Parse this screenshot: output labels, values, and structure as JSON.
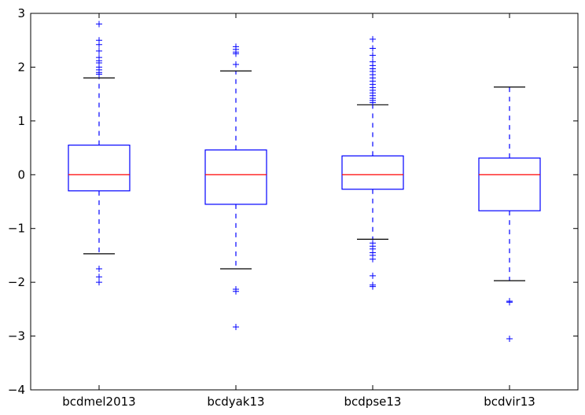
{
  "chart_data": {
    "type": "box",
    "title": "",
    "xlabel": "",
    "ylabel": "",
    "ylim": [
      -4,
      3
    ],
    "yticks": [
      -4,
      -3,
      -2,
      -1,
      0,
      1,
      2,
      3
    ],
    "ytick_labels": [
      "−4",
      "−3",
      "−2",
      "−1",
      "0",
      "1",
      "2",
      "3"
    ],
    "grid": false,
    "legend": "none",
    "colors": {
      "box": "#0000ff",
      "median": "#ff0000",
      "whisker": "#0000ff",
      "cap": "#000000",
      "flier": "#0000ff"
    },
    "categories": [
      "bcdmel2013",
      "bcdyak13",
      "bcdpse13",
      "bcdvir13"
    ],
    "boxes": [
      {
        "label": "bcdmel2013",
        "q1": -0.3,
        "median": 0.0,
        "q3": 0.55,
        "whisker_low": -1.47,
        "whisker_high": 1.8,
        "fliers": [
          2.8,
          2.5,
          2.42,
          2.3,
          2.18,
          2.12,
          2.08,
          2.0,
          1.95,
          1.9,
          1.87,
          -1.75,
          -1.9,
          -2.0
        ]
      },
      {
        "label": "bcdyak13",
        "q1": -0.55,
        "median": 0.0,
        "q3": 0.46,
        "whisker_low": -1.75,
        "whisker_high": 1.93,
        "fliers": [
          2.38,
          2.33,
          2.28,
          2.25,
          2.05,
          -2.13,
          -2.17,
          -2.83
        ]
      },
      {
        "label": "bcdpse13",
        "q1": -0.27,
        "median": 0.0,
        "q3": 0.35,
        "whisker_low": -1.2,
        "whisker_high": 1.3,
        "fliers": [
          2.52,
          2.35,
          2.22,
          2.1,
          2.03,
          1.97,
          1.92,
          1.86,
          1.8,
          1.74,
          1.68,
          1.62,
          1.57,
          1.52,
          1.47,
          1.42,
          1.38,
          1.34,
          -1.27,
          -1.33,
          -1.38,
          -1.45,
          -1.5,
          -1.57,
          -1.88,
          -2.05,
          -2.08
        ]
      },
      {
        "label": "bcdvir13",
        "q1": -0.67,
        "median": 0.0,
        "q3": 0.31,
        "whisker_low": -1.97,
        "whisker_high": 1.63,
        "fliers": [
          -2.35,
          -2.37,
          -3.05
        ]
      }
    ]
  }
}
